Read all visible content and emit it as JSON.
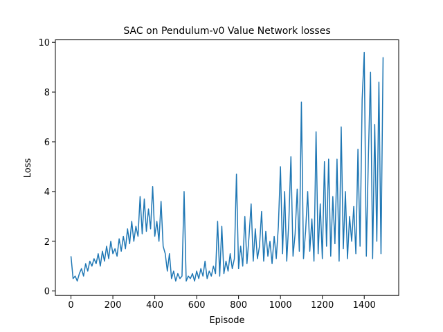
{
  "chart_data": {
    "type": "line",
    "title": "SAC on Pendulum-v0 Value Network losses",
    "x_label": "Episode",
    "y_label": "Loss",
    "x": [
      0,
      10,
      20,
      30,
      40,
      50,
      60,
      70,
      80,
      90,
      100,
      110,
      120,
      130,
      140,
      150,
      160,
      170,
      180,
      190,
      200,
      210,
      220,
      230,
      240,
      250,
      260,
      270,
      280,
      290,
      300,
      310,
      320,
      330,
      340,
      350,
      360,
      370,
      380,
      390,
      400,
      410,
      420,
      430,
      440,
      450,
      460,
      470,
      480,
      490,
      500,
      510,
      520,
      530,
      540,
      550,
      560,
      570,
      580,
      590,
      600,
      610,
      620,
      630,
      640,
      650,
      660,
      670,
      680,
      690,
      700,
      710,
      720,
      730,
      740,
      750,
      760,
      770,
      780,
      790,
      800,
      810,
      820,
      830,
      840,
      850,
      860,
      870,
      880,
      890,
      900,
      910,
      920,
      930,
      940,
      950,
      960,
      970,
      980,
      990,
      1000,
      1010,
      1020,
      1030,
      1040,
      1050,
      1060,
      1070,
      1080,
      1090,
      1100,
      1110,
      1120,
      1130,
      1140,
      1150,
      1160,
      1170,
      1180,
      1190,
      1200,
      1210,
      1220,
      1230,
      1240,
      1250,
      1260,
      1270,
      1280,
      1290,
      1300,
      1310,
      1320,
      1330,
      1340,
      1350,
      1360,
      1370,
      1380,
      1390,
      1400,
      1410,
      1420,
      1430,
      1440,
      1450,
      1460,
      1470,
      1480,
      1490
    ],
    "series": [
      {
        "name": "Loss",
        "color": "#1f77b4",
        "values": [
          1.4,
          0.5,
          0.6,
          0.4,
          0.7,
          0.9,
          0.6,
          1.1,
          0.8,
          1.2,
          1.0,
          1.3,
          1.1,
          1.5,
          1.0,
          1.6,
          1.2,
          1.8,
          1.3,
          2.0,
          1.5,
          1.7,
          1.4,
          2.1,
          1.6,
          2.2,
          1.7,
          2.5,
          1.9,
          2.8,
          2.0,
          2.6,
          2.2,
          3.8,
          2.3,
          3.7,
          2.4,
          3.3,
          2.5,
          4.2,
          2.2,
          2.8,
          2.0,
          3.6,
          1.8,
          1.5,
          0.8,
          1.5,
          0.5,
          0.8,
          0.4,
          0.7,
          0.5,
          0.6,
          4.0,
          0.4,
          0.6,
          0.5,
          0.7,
          0.4,
          0.8,
          0.5,
          0.9,
          0.6,
          1.2,
          0.5,
          0.8,
          0.6,
          1.0,
          0.7,
          2.8,
          0.6,
          2.6,
          0.7,
          1.2,
          0.8,
          1.5,
          0.9,
          1.3,
          4.7,
          0.9,
          1.8,
          1.0,
          3.0,
          1.1,
          2.2,
          3.5,
          1.2,
          2.5,
          1.3,
          1.8,
          3.2,
          1.2,
          2.4,
          1.4,
          2.0,
          1.1,
          2.2,
          1.3,
          2.6,
          5.0,
          1.5,
          4.0,
          1.2,
          2.8,
          5.4,
          1.4,
          2.3,
          4.1,
          1.6,
          7.6,
          1.3,
          2.4,
          4.0,
          1.6,
          2.9,
          1.2,
          6.4,
          1.5,
          3.5,
          1.3,
          5.2,
          1.8,
          5.3,
          1.4,
          3.8,
          1.9,
          5.3,
          1.2,
          6.6,
          1.7,
          4.0,
          1.3,
          3.0,
          2.0,
          3.4,
          1.5,
          5.7,
          1.8,
          7.7,
          9.6,
          1.4,
          5.5,
          8.8,
          1.3,
          6.7,
          2.0,
          8.4,
          1.5,
          9.4
        ]
      }
    ],
    "xlim": [
      -74.5,
      1564.5
    ],
    "ylim": [
      -0.18,
      10.1
    ],
    "xticks": [
      0,
      200,
      400,
      600,
      800,
      1000,
      1200,
      1400
    ],
    "yticks": [
      0,
      2,
      4,
      6,
      8,
      10
    ],
    "grid": false
  }
}
